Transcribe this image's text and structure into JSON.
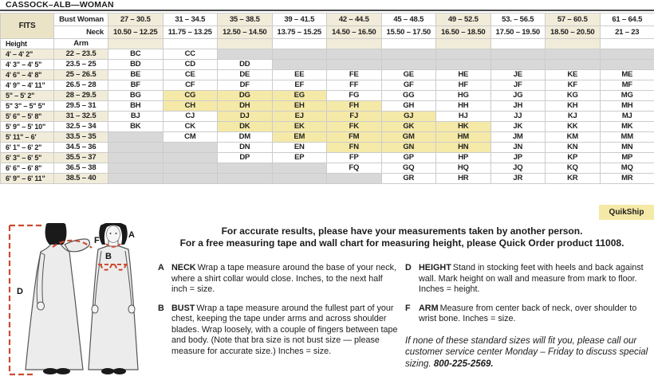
{
  "title": "CASSOCK–ALB—WOMAN",
  "colors": {
    "cream": "#f1ecd9",
    "fits_cream": "#eae3c6",
    "highlight": "#f5e9a7",
    "empty": "#d8d8d8",
    "accent_red": "#cc4b33"
  },
  "table": {
    "fits_label": "FITS",
    "bust_label": "Bust Woman",
    "neck_label": "Neck",
    "height_label": "Height",
    "arm_label": "Arm",
    "columns": [
      {
        "bust": "27 – 30.5",
        "neck": "10.50 – 12.25"
      },
      {
        "bust": "31 – 34.5",
        "neck": "11.75 – 13.25"
      },
      {
        "bust": "35 – 38.5",
        "neck": "12.50 – 14.50"
      },
      {
        "bust": "39 – 41.5",
        "neck": "13.75 – 15.25"
      },
      {
        "bust": "42 – 44.5",
        "neck": "14.50 – 16.50"
      },
      {
        "bust": "45 – 48.5",
        "neck": "15.50 – 17.50"
      },
      {
        "bust": "49 – 52.5",
        "neck": "16.50 – 18.50"
      },
      {
        "bust": "53. – 56.5",
        "neck": "17.50 – 19.50"
      },
      {
        "bust": "57 – 60.5",
        "neck": "18.50 – 20.50"
      },
      {
        "bust": "61 – 64.5",
        "neck": "21 – 23"
      }
    ],
    "rows": [
      {
        "height": "4' – 4' 2\"",
        "arm": "22 – 23.5",
        "cells": [
          "BC",
          "CC",
          "",
          "",
          "",
          "",
          "",
          "",
          "",
          ""
        ]
      },
      {
        "height": "4' 3\" – 4' 5\"",
        "arm": "23.5 – 25",
        "cells": [
          "BD",
          "CD",
          "DD",
          "",
          "",
          "",
          "",
          "",
          "",
          ""
        ]
      },
      {
        "height": "4' 6\" – 4' 8\"",
        "arm": "25 – 26.5",
        "cells": [
          "BE",
          "CE",
          "DE",
          "EE",
          "FE",
          "GE",
          "HE",
          "JE",
          "KE",
          "ME"
        ]
      },
      {
        "height": "4' 9\" – 4' 11\"",
        "arm": "26.5 – 28",
        "cells": [
          "BF",
          "CF",
          "DF",
          "EF",
          "FF",
          "GF",
          "HF",
          "JF",
          "KF",
          "MF"
        ]
      },
      {
        "height": "5\" – 5' 2\"",
        "arm": "28 – 29.5",
        "cells": [
          "BG",
          "*CG",
          "*DG",
          "*EG",
          "FG",
          "GG",
          "HG",
          "JG",
          "KG",
          "MG"
        ]
      },
      {
        "height": "5\" 3\" – 5\" 5\"",
        "arm": "29.5 – 31",
        "cells": [
          "BH",
          "*CH",
          "*DH",
          "*EH",
          "*FH",
          "GH",
          "HH",
          "JH",
          "KH",
          "MH"
        ]
      },
      {
        "height": "5' 6\" – 5' 8\"",
        "arm": "31 – 32.5",
        "cells": [
          "BJ",
          "CJ",
          "*DJ",
          "*EJ",
          "*FJ",
          "*GJ",
          "HJ",
          "JJ",
          "KJ",
          "MJ"
        ]
      },
      {
        "height": "5' 9\" – 5' 10\"",
        "arm": "32.5 – 34",
        "cells": [
          "BK",
          "CK",
          "*DK",
          "*EK",
          "*FK",
          "*GK",
          "*HK",
          "JK",
          "KK",
          "MK"
        ]
      },
      {
        "height": "5' 11\" – 6'",
        "arm": "33.5 – 35",
        "cells": [
          "",
          "CM",
          "DM",
          "*EM",
          "*FM",
          "*GM",
          "*HM",
          "JM",
          "KM",
          "MM"
        ]
      },
      {
        "height": "6' 1\" – 6' 2\"",
        "arm": "34.5 – 36",
        "cells": [
          "",
          "",
          "DN",
          "EN",
          "*FN",
          "*GN",
          "*HN",
          "JN",
          "KN",
          "MN"
        ]
      },
      {
        "height": "6' 3\" – 6' 5\"",
        "arm": "35.5 – 37",
        "cells": [
          "",
          "",
          "DP",
          "EP",
          "FP",
          "GP",
          "HP",
          "JP",
          "KP",
          "MP"
        ]
      },
      {
        "height": "6' 6\" – 6' 8\"",
        "arm": "36.5 – 38",
        "cells": [
          "",
          "",
          "",
          "",
          "FQ",
          "GQ",
          "HQ",
          "JQ",
          "KQ",
          "MQ"
        ]
      },
      {
        "height": "6' 9\" – 6' 11\"",
        "arm": "38.5 – 40",
        "cells": [
          "",
          "",
          "",
          "",
          "",
          "GR",
          "HR",
          "JR",
          "KR",
          "MR"
        ]
      }
    ]
  },
  "quikship_label": "QuikShip",
  "intro": {
    "line1": "For accurate results, please have your measurements taken by another person.",
    "line2": "For a free measuring tape and wall chart for measuring height, please Quick Order product 11008."
  },
  "instructions": [
    {
      "letter": "A",
      "term": "NECK",
      "text": "Wrap a tape measure around the base of your neck, where a shirt collar would close. Inches, to the next half inch = size."
    },
    {
      "letter": "B",
      "term": "BUST",
      "text": "Wrap a tape measure around the fullest part of your chest, keeping the tape under arms and across shoulder blades. Wrap loosely, with a couple of fingers between tape and body. (Note that bra size is not bust size — please measure for accurate size.) Inches = size."
    },
    {
      "letter": "D",
      "term": "HEIGHT",
      "text": "Stand in stocking feet with heels and back against wall. Mark height on wall and measure from mark to floor. Inches = height."
    },
    {
      "letter": "F",
      "term": "ARM",
      "text": "Measure from center back of neck, over shoulder to wrist bone. Inches = size."
    }
  ],
  "note": {
    "text": "If none of these standard sizes will fit you, please call our customer service center Monday – Friday to discuss special sizing.",
    "phone": "800-225-2569."
  },
  "figure_labels": {
    "a": "A",
    "b": "B",
    "d": "D",
    "f": "F"
  }
}
